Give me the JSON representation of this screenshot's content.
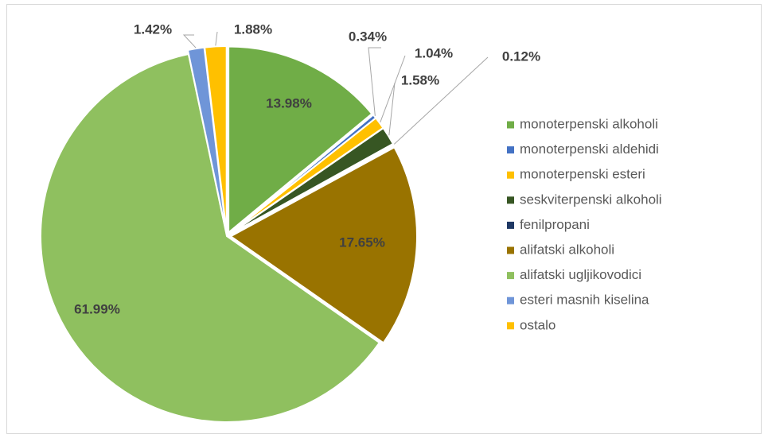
{
  "chart_data": {
    "type": "pie",
    "categories": [
      "monoterpenski alkoholi",
      "monoterpenski aldehidi",
      "monoterpenski esteri",
      "seskviterpenski alkoholi",
      "fenilpropani",
      "alifatski alkoholi",
      "alifatski ugljikovodici",
      "esteri masnih kiselina",
      "ostalo"
    ],
    "values": [
      13.98,
      0.34,
      1.04,
      1.58,
      0.12,
      17.65,
      61.99,
      1.42,
      1.88
    ],
    "value_labels": [
      "13.98%",
      "0.34%",
      "1.04%",
      "1.58%",
      "0.12%",
      "17.65%",
      "61.99%",
      "1.42%",
      "1.88%"
    ],
    "colors": [
      "#70ad47",
      "#4472c4",
      "#ffc000",
      "#375623",
      "#1f3864",
      "#997300",
      "#8fc05f",
      "#6f95d8",
      "#ffc000"
    ],
    "legend": "right"
  }
}
